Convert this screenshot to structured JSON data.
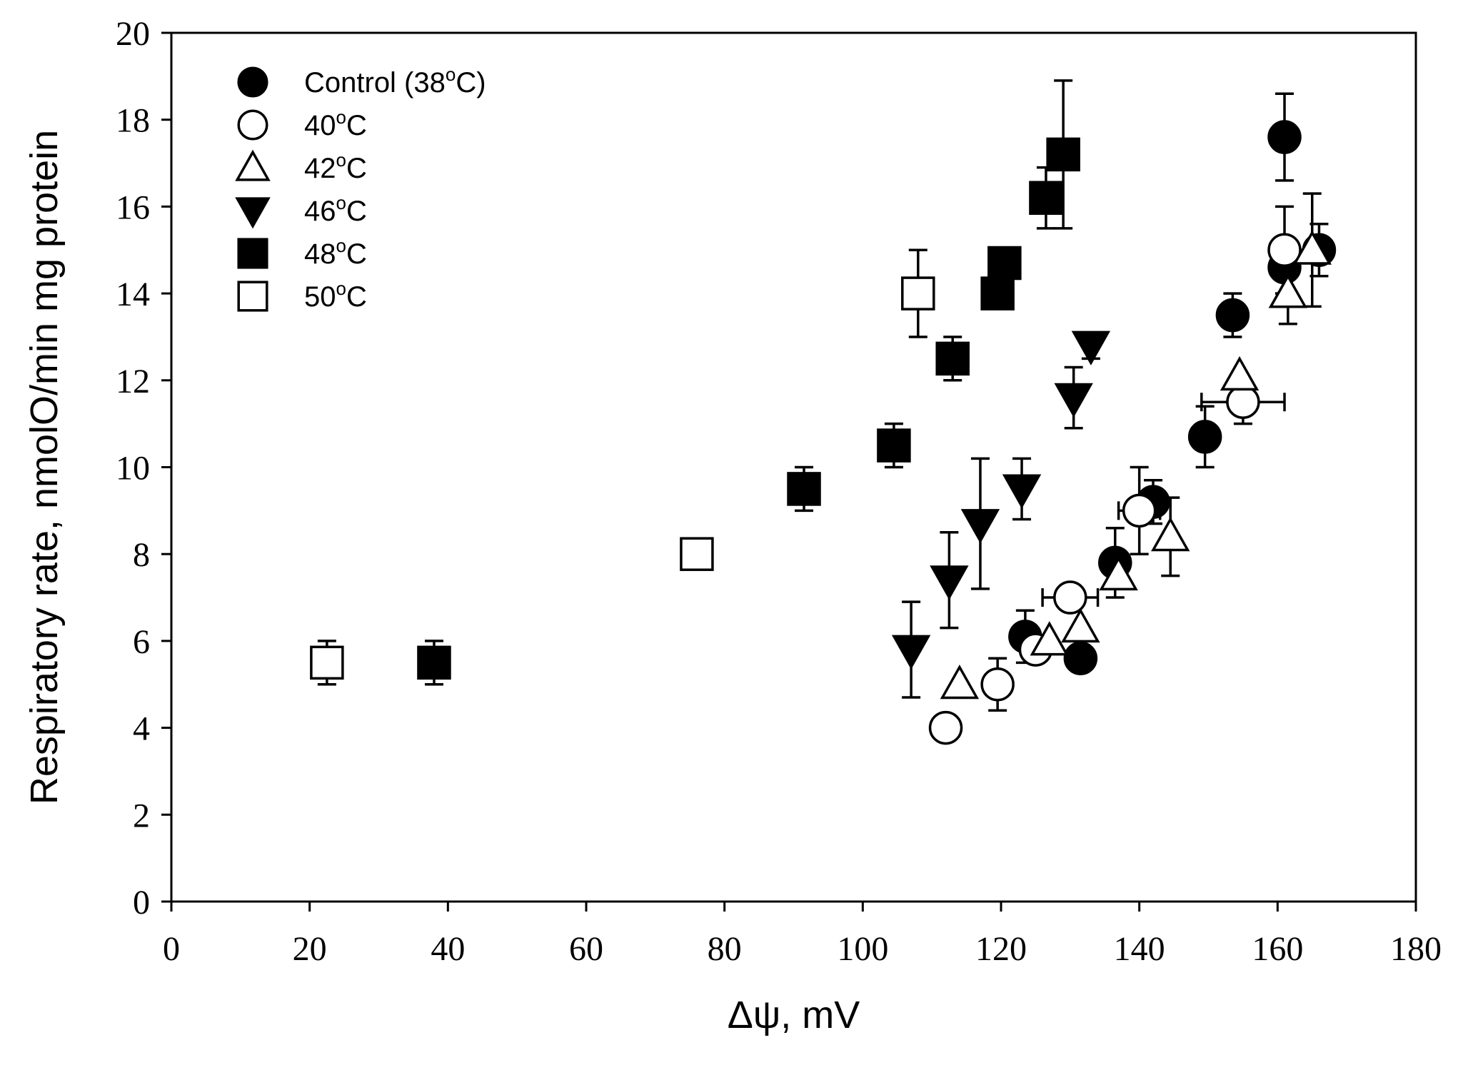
{
  "chart_data": {
    "type": "scatter",
    "title": "",
    "xlabel": "Δψ, mV",
    "ylabel": "Respiratory rate, nmolO/min mg protein",
    "xlim": [
      0,
      180
    ],
    "ylim": [
      0,
      20
    ],
    "xticks": [
      "0",
      "20",
      "40",
      "60",
      "80",
      "100",
      "120",
      "140",
      "160",
      "180"
    ],
    "yticks": [
      "0",
      "2",
      "4",
      "6",
      "8",
      "10",
      "12",
      "14",
      "16",
      "18",
      "20"
    ],
    "grid": false,
    "legend_position": "top-left",
    "series": [
      {
        "name": "Control (38",
        "name_sup": "o",
        "name_suffix": "C)",
        "marker": "filled-circle",
        "points": [
          {
            "x": 123.5,
            "y": 6.1,
            "yerr": 0.6
          },
          {
            "x": 131.5,
            "y": 5.6,
            "yerr": 0.3
          },
          {
            "x": 136.5,
            "y": 7.8,
            "yerr": 0.8
          },
          {
            "x": 142,
            "y": 9.2,
            "yerr": 0.5
          },
          {
            "x": 149.5,
            "y": 10.7,
            "yerr": 0.7
          },
          {
            "x": 153.5,
            "y": 13.5,
            "yerr": 0.5
          },
          {
            "x": 161,
            "y": 17.6,
            "yerr": 1.0
          },
          {
            "x": 161,
            "y": 14.6,
            "yerr": 0.6
          },
          {
            "x": 166,
            "y": 15.0,
            "yerr": 0.6
          }
        ]
      },
      {
        "name": "40",
        "name_sup": "o",
        "name_suffix": "C",
        "marker": "open-circle",
        "points": [
          {
            "x": 112,
            "y": 4.0
          },
          {
            "x": 119.5,
            "y": 5.0,
            "yerr": 0.6
          },
          {
            "x": 125,
            "y": 5.8
          },
          {
            "x": 130,
            "y": 7.0,
            "xerr": 4
          },
          {
            "x": 140,
            "y": 9.0,
            "yerr": 1.0,
            "xerr": 3
          },
          {
            "x": 155,
            "y": 11.5,
            "yerr": 0.5,
            "xerr": 6
          },
          {
            "x": 161,
            "y": 15.0,
            "yerr": 1.0
          }
        ]
      },
      {
        "name": "42",
        "name_sup": "o",
        "name_suffix": "C",
        "marker": "open-triangle-up",
        "points": [
          {
            "x": 114,
            "y": 5.0
          },
          {
            "x": 127,
            "y": 6.0
          },
          {
            "x": 131.5,
            "y": 6.3
          },
          {
            "x": 137,
            "y": 7.5
          },
          {
            "x": 144.5,
            "y": 8.4,
            "yerr": 0.9
          },
          {
            "x": 154.5,
            "y": 12.1
          },
          {
            "x": 161.5,
            "y": 14.0,
            "yerr": 0.7
          },
          {
            "x": 165,
            "y": 15.0,
            "yerr": 1.3
          }
        ]
      },
      {
        "name": "46",
        "name_sup": "o",
        "name_suffix": "C",
        "marker": "filled-triangle-down",
        "points": [
          {
            "x": 107,
            "y": 5.8,
            "yerr": 1.1
          },
          {
            "x": 112.5,
            "y": 7.4,
            "yerr": 1.1
          },
          {
            "x": 117,
            "y": 8.7,
            "yerr": 1.5
          },
          {
            "x": 123,
            "y": 9.5,
            "yerr": 0.7
          },
          {
            "x": 130.5,
            "y": 11.6,
            "yerr": 0.7
          },
          {
            "x": 133,
            "y": 12.8,
            "yerr": 0.3
          }
        ]
      },
      {
        "name": "48",
        "name_sup": "o",
        "name_suffix": "C",
        "marker": "filled-square",
        "points": [
          {
            "x": 38,
            "y": 5.5,
            "yerr": 0.5
          },
          {
            "x": 91.5,
            "y": 9.5,
            "yerr": 0.5
          },
          {
            "x": 104.5,
            "y": 10.5,
            "yerr": 0.5
          },
          {
            "x": 113,
            "y": 12.5,
            "yerr": 0.5
          },
          {
            "x": 119.5,
            "y": 14.0
          },
          {
            "x": 120.5,
            "y": 14.7
          },
          {
            "x": 126.5,
            "y": 16.2,
            "yerr": 0.7
          },
          {
            "x": 129,
            "y": 17.2,
            "yerr": 1.7
          }
        ]
      },
      {
        "name": "50",
        "name_sup": "o",
        "name_suffix": "C",
        "marker": "open-square",
        "points": [
          {
            "x": 22.5,
            "y": 5.5,
            "yerr": 0.5
          },
          {
            "x": 76,
            "y": 8.0
          },
          {
            "x": 108,
            "y": 14.0,
            "yerr": 1.0
          }
        ]
      }
    ]
  }
}
